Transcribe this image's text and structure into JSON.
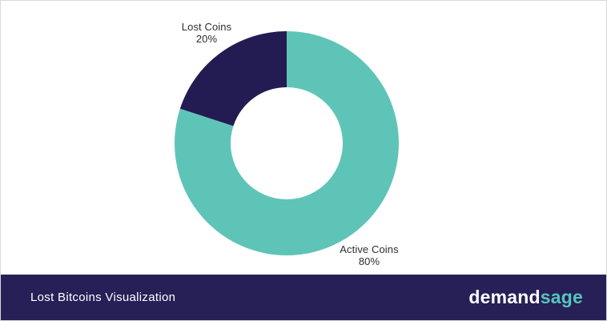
{
  "page": {
    "background": "#ffffff",
    "border_color": "#d9d9d9"
  },
  "chart_data": {
    "type": "pie",
    "style": "donut",
    "title": "Lost Bitcoins Visualization",
    "slices": [
      {
        "label": "Active Coins",
        "value": 80,
        "display": "80%",
        "color": "#5FC4B8"
      },
      {
        "label": "Lost Coins",
        "value": 20,
        "display": "20%",
        "color": "#221C52"
      }
    ],
    "start_at": "top",
    "direction": "clockwise",
    "inner_radius_ratio": 0.5,
    "legend_position": "none",
    "label_placement": "outside"
  },
  "footer": {
    "title": "Lost Bitcoins Visualization",
    "background": "#272057",
    "logo": {
      "part1": "demand",
      "part2": "sage",
      "part1_color": "#ffffff",
      "part2_color": "#57C5BB"
    }
  }
}
